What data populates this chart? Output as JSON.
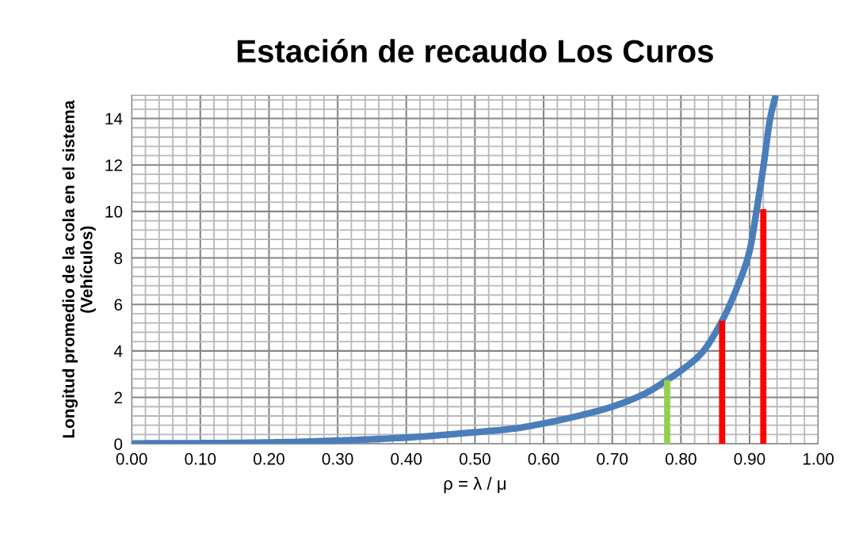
{
  "chart_data": {
    "type": "line",
    "title": "Estación de recaudo Los Curos",
    "xlabel": "ρ = λ / μ",
    "ylabel": "Longitud promedio de la cola en el sistema\n(Vehículos)",
    "xlim": [
      0,
      1
    ],
    "xticks": [
      {
        "value": 0,
        "label": "0.00"
      },
      {
        "value": 0.1,
        "label": "0.10"
      },
      {
        "value": 0.2,
        "label": "0.20"
      },
      {
        "value": 0.3,
        "label": "0.30"
      },
      {
        "value": 0.4,
        "label": "0.40"
      },
      {
        "value": 0.5,
        "label": "0.50"
      },
      {
        "value": 0.6,
        "label": "0.60"
      },
      {
        "value": 0.7,
        "label": "0.70"
      },
      {
        "value": 0.8,
        "label": "0.80"
      },
      {
        "value": 0.9,
        "label": "0.90"
      },
      {
        "value": 1,
        "label": "1.00"
      }
    ],
    "ylim": [
      0,
      15
    ],
    "yticks": [
      0,
      2,
      4,
      6,
      8,
      10,
      12,
      14
    ],
    "grid": true,
    "series": [
      {
        "color": "#4a7ebb",
        "x": [
          0,
          0.1,
          0.2,
          0.3,
          0.4,
          0.5,
          0.56,
          0.6,
          0.65,
          0.7,
          0.75,
          0.78,
          0.8,
          0.83,
          0.86,
          0.88,
          0.9,
          0.91,
          0.92,
          0.93,
          0.938
        ],
        "values": [
          0.02,
          0.03,
          0.06,
          0.14,
          0.27,
          0.5,
          0.67,
          0.88,
          1.2,
          1.6,
          2.2,
          2.75,
          3.15,
          3.9,
          5.3,
          6.6,
          8.3,
          10.0,
          11.9,
          14.0,
          15.0
        ]
      },
      {
        "type": "bar",
        "x": [
          0.78,
          0.86,
          0.92
        ],
        "values": [
          2.75,
          5.3,
          10.1
        ],
        "colors": [
          "#92d050",
          "#ff0000",
          "#ff0000"
        ]
      }
    ]
  }
}
